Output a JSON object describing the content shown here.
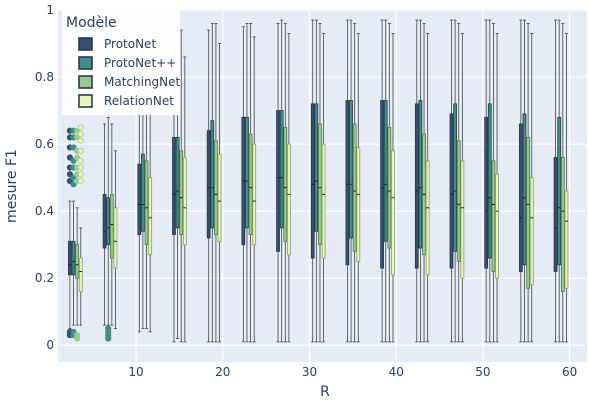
{
  "chart_data": {
    "type": "box",
    "xlabel": "R",
    "ylabel": "mesure F1",
    "ylim": [
      -0.05,
      1.0
    ],
    "x_ticks": [
      10,
      20,
      30,
      40,
      50,
      60
    ],
    "y_ticks": [
      0,
      0.2,
      0.4,
      0.6,
      0.8,
      1
    ],
    "y_tick_labels": [
      "0",
      "0.2",
      "0.4",
      "0.6",
      "0.8",
      "1"
    ],
    "x_positions": [
      3,
      7,
      11,
      15,
      19,
      23,
      27,
      31,
      35,
      39,
      43,
      47,
      51,
      55,
      59
    ],
    "legend": {
      "title": "Modèle",
      "placement": "top-left"
    },
    "series": [
      {
        "name": "ProtoNet",
        "color": "#355070",
        "boxes": [
          {
            "q1": 0.21,
            "median": 0.24,
            "q3": 0.31,
            "low": 0.05,
            "high": 0.43,
            "outliers": [
              0.03,
              0.04,
              0.49,
              0.51,
              0.53,
              0.56,
              0.59,
              0.62,
              0.64
            ]
          },
          {
            "q1": 0.29,
            "median": 0.34,
            "q3": 0.45,
            "low": 0.06,
            "high": 0.66,
            "outliers": []
          },
          {
            "q1": 0.33,
            "median": 0.42,
            "q3": 0.54,
            "low": 0.04,
            "high": 0.85,
            "outliers": []
          },
          {
            "q1": 0.33,
            "median": 0.45,
            "q3": 0.62,
            "low": 0.01,
            "high": 0.88,
            "outliers": []
          },
          {
            "q1": 0.32,
            "median": 0.47,
            "q3": 0.64,
            "low": 0.01,
            "high": 0.94,
            "outliers": []
          },
          {
            "q1": 0.3,
            "median": 0.49,
            "q3": 0.68,
            "low": 0.01,
            "high": 0.95,
            "outliers": []
          },
          {
            "q1": 0.28,
            "median": 0.5,
            "q3": 0.7,
            "low": 0.01,
            "high": 0.96,
            "outliers": []
          },
          {
            "q1": 0.26,
            "median": 0.48,
            "q3": 0.72,
            "low": 0.01,
            "high": 0.97,
            "outliers": []
          },
          {
            "q1": 0.24,
            "median": 0.48,
            "q3": 0.73,
            "low": 0.01,
            "high": 0.97,
            "outliers": []
          },
          {
            "q1": 0.23,
            "median": 0.47,
            "q3": 0.73,
            "low": 0.01,
            "high": 0.97,
            "outliers": []
          },
          {
            "q1": 0.23,
            "median": 0.46,
            "q3": 0.72,
            "low": 0.01,
            "high": 0.97,
            "outliers": []
          },
          {
            "q1": 0.23,
            "median": 0.45,
            "q3": 0.69,
            "low": 0.01,
            "high": 0.97,
            "outliers": []
          },
          {
            "q1": 0.23,
            "median": 0.4,
            "q3": 0.68,
            "low": 0.01,
            "high": 0.97,
            "outliers": []
          },
          {
            "q1": 0.22,
            "median": 0.38,
            "q3": 0.66,
            "low": 0.01,
            "high": 0.97,
            "outliers": []
          },
          {
            "q1": 0.22,
            "median": 0.35,
            "q3": 0.56,
            "low": 0.01,
            "high": 0.97,
            "outliers": []
          }
        ]
      },
      {
        "name": "ProtoNet++",
        "color": "#3f8f86",
        "boxes": [
          {
            "q1": 0.21,
            "median": 0.25,
            "q3": 0.31,
            "low": 0.06,
            "high": 0.43,
            "outliers": [
              0.03,
              0.04,
              0.48,
              0.5,
              0.53,
              0.55,
              0.59,
              0.62,
              0.64
            ]
          },
          {
            "q1": 0.3,
            "median": 0.35,
            "q3": 0.44,
            "low": 0.06,
            "high": 0.68,
            "outliers": [
              0.02,
              0.03,
              0.04,
              0.05,
              0.7,
              0.73
            ]
          },
          {
            "q1": 0.34,
            "median": 0.42,
            "q3": 0.57,
            "low": 0.05,
            "high": 0.94,
            "outliers": []
          },
          {
            "q1": 0.35,
            "median": 0.46,
            "q3": 0.62,
            "low": 0.02,
            "high": 0.95,
            "outliers": []
          },
          {
            "q1": 0.35,
            "median": 0.47,
            "q3": 0.67,
            "low": 0.01,
            "high": 0.96,
            "outliers": []
          },
          {
            "q1": 0.35,
            "median": 0.49,
            "q3": 0.68,
            "low": 0.01,
            "high": 0.96,
            "outliers": []
          },
          {
            "q1": 0.35,
            "median": 0.5,
            "q3": 0.7,
            "low": 0.01,
            "high": 0.97,
            "outliers": []
          },
          {
            "q1": 0.34,
            "median": 0.49,
            "q3": 0.72,
            "low": 0.01,
            "high": 0.97,
            "outliers": []
          },
          {
            "q1": 0.32,
            "median": 0.48,
            "q3": 0.73,
            "low": 0.01,
            "high": 0.97,
            "outliers": []
          },
          {
            "q1": 0.31,
            "median": 0.48,
            "q3": 0.73,
            "low": 0.01,
            "high": 0.97,
            "outliers": []
          },
          {
            "q1": 0.29,
            "median": 0.47,
            "q3": 0.73,
            "low": 0.01,
            "high": 0.97,
            "outliers": []
          },
          {
            "q1": 0.28,
            "median": 0.46,
            "q3": 0.72,
            "low": 0.01,
            "high": 0.97,
            "outliers": []
          },
          {
            "q1": 0.26,
            "median": 0.44,
            "q3": 0.72,
            "low": 0.01,
            "high": 0.97,
            "outliers": []
          },
          {
            "q1": 0.24,
            "median": 0.44,
            "q3": 0.69,
            "low": 0.01,
            "high": 0.97,
            "outliers": []
          },
          {
            "q1": 0.24,
            "median": 0.41,
            "q3": 0.68,
            "low": 0.01,
            "high": 0.97,
            "outliers": []
          }
        ]
      },
      {
        "name": "MatchingNet",
        "color": "#9ac98f",
        "boxes": [
          {
            "q1": 0.2,
            "median": 0.24,
            "q3": 0.3,
            "low": 0.06,
            "high": 0.41,
            "outliers": [
              0.02,
              0.03,
              0.49,
              0.51,
              0.53,
              0.56,
              0.58,
              0.62,
              0.64
            ]
          },
          {
            "q1": 0.26,
            "median": 0.36,
            "q3": 0.45,
            "low": 0.06,
            "high": 0.66,
            "outliers": []
          },
          {
            "q1": 0.3,
            "median": 0.41,
            "q3": 0.55,
            "low": 0.05,
            "high": 0.88,
            "outliers": []
          },
          {
            "q1": 0.33,
            "median": 0.44,
            "q3": 0.58,
            "low": 0.01,
            "high": 0.94,
            "outliers": []
          },
          {
            "q1": 0.33,
            "median": 0.45,
            "q3": 0.61,
            "low": 0.01,
            "high": 0.96,
            "outliers": []
          },
          {
            "q1": 0.33,
            "median": 0.47,
            "q3": 0.63,
            "low": 0.01,
            "high": 0.96,
            "outliers": []
          },
          {
            "q1": 0.31,
            "median": 0.47,
            "q3": 0.65,
            "low": 0.01,
            "high": 0.96,
            "outliers": []
          },
          {
            "q1": 0.3,
            "median": 0.47,
            "q3": 0.66,
            "low": 0.01,
            "high": 0.96,
            "outliers": []
          },
          {
            "q1": 0.28,
            "median": 0.46,
            "q3": 0.66,
            "low": 0.01,
            "high": 0.96,
            "outliers": []
          },
          {
            "q1": 0.29,
            "median": 0.46,
            "q3": 0.65,
            "low": 0.01,
            "high": 0.96,
            "outliers": []
          },
          {
            "q1": 0.27,
            "median": 0.45,
            "q3": 0.63,
            "low": 0.01,
            "high": 0.96,
            "outliers": []
          },
          {
            "q1": 0.25,
            "median": 0.42,
            "q3": 0.61,
            "low": 0.01,
            "high": 0.96,
            "outliers": []
          },
          {
            "q1": 0.22,
            "median": 0.42,
            "q3": 0.55,
            "low": 0.01,
            "high": 0.96,
            "outliers": []
          },
          {
            "q1": 0.17,
            "median": 0.42,
            "q3": 0.62,
            "low": 0.01,
            "high": 0.96,
            "outliers": []
          },
          {
            "q1": 0.16,
            "median": 0.4,
            "q3": 0.56,
            "low": 0.01,
            "high": 0.96,
            "outliers": []
          }
        ]
      },
      {
        "name": "RelationNet",
        "color": "#e8f5c0",
        "boxes": [
          {
            "q1": 0.16,
            "median": 0.22,
            "q3": 0.26,
            "low": 0.06,
            "high": 0.35,
            "outliers": [
              0.49,
              0.51,
              0.53,
              0.55,
              0.58,
              0.61,
              0.63,
              0.65
            ]
          },
          {
            "q1": 0.23,
            "median": 0.31,
            "q3": 0.41,
            "low": 0.05,
            "high": 0.58,
            "outliers": []
          },
          {
            "q1": 0.27,
            "median": 0.38,
            "q3": 0.5,
            "low": 0.04,
            "high": 0.78,
            "outliers": []
          },
          {
            "q1": 0.3,
            "median": 0.41,
            "q3": 0.56,
            "low": 0.01,
            "high": 0.86,
            "outliers": []
          },
          {
            "q1": 0.31,
            "median": 0.43,
            "q3": 0.57,
            "low": 0.01,
            "high": 0.9,
            "outliers": []
          },
          {
            "q1": 0.3,
            "median": 0.43,
            "q3": 0.6,
            "low": 0.01,
            "high": 0.92,
            "outliers": []
          },
          {
            "q1": 0.27,
            "median": 0.45,
            "q3": 0.6,
            "low": 0.01,
            "high": 0.93,
            "outliers": []
          },
          {
            "q1": 0.26,
            "median": 0.45,
            "q3": 0.6,
            "low": 0.01,
            "high": 0.93,
            "outliers": []
          },
          {
            "q1": 0.25,
            "median": 0.45,
            "q3": 0.59,
            "low": 0.01,
            "high": 0.93,
            "outliers": []
          },
          {
            "q1": 0.21,
            "median": 0.44,
            "q3": 0.58,
            "low": 0.01,
            "high": 0.93,
            "outliers": []
          },
          {
            "q1": 0.21,
            "median": 0.41,
            "q3": 0.55,
            "low": 0.01,
            "high": 0.93,
            "outliers": []
          },
          {
            "q1": 0.2,
            "median": 0.41,
            "q3": 0.55,
            "low": 0.01,
            "high": 0.93,
            "outliers": []
          },
          {
            "q1": 0.2,
            "median": 0.4,
            "q3": 0.51,
            "low": 0.01,
            "high": 0.93,
            "outliers": []
          },
          {
            "q1": 0.18,
            "median": 0.38,
            "q3": 0.5,
            "low": 0.01,
            "high": 0.93,
            "outliers": []
          },
          {
            "q1": 0.17,
            "median": 0.37,
            "q3": 0.46,
            "low": 0.01,
            "high": 0.93,
            "outliers": []
          }
        ]
      }
    ]
  }
}
